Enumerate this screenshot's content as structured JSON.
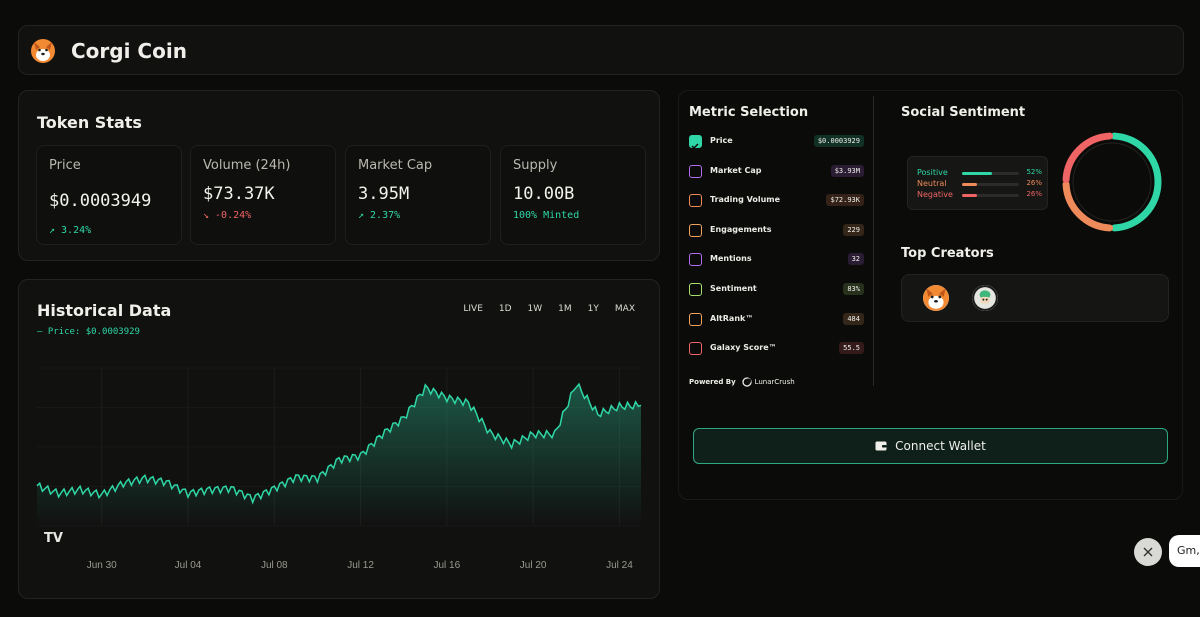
{
  "header": {
    "title": "Corgi Coin",
    "logo_icon": "corgi-icon"
  },
  "token_stats": {
    "title": "Token Stats",
    "cards": [
      {
        "label": "Price",
        "value": "$0.0003949",
        "change": "↗ 3.24%",
        "direction": "up"
      },
      {
        "label": "Volume (24h)",
        "value": "$73.37K",
        "change": "↘ -0.24%",
        "direction": "down"
      },
      {
        "label": "Market Cap",
        "value": "3.95M",
        "change": "↗ 2.37%",
        "direction": "up"
      },
      {
        "label": "Supply",
        "value": "10.00B",
        "change": "100% Minted",
        "direction": "up"
      }
    ]
  },
  "historical": {
    "title": "Historical Data",
    "legend": "— Price: $0.0003929",
    "ranges": [
      "LIVE",
      "1D",
      "1W",
      "1M",
      "1Y",
      "MAX"
    ],
    "logo": "TV"
  },
  "chart_data": {
    "type": "area",
    "title": "Historical Data",
    "series": [
      {
        "name": "Price",
        "x": [
          "Jun 27",
          "Jun 28",
          "Jun 29",
          "Jun 30",
          "Jul 01",
          "Jul 02",
          "Jul 03",
          "Jul 04",
          "Jul 05",
          "Jul 06",
          "Jul 07",
          "Jul 08",
          "Jul 09",
          "Jul 10",
          "Jul 11",
          "Jul 12",
          "Jul 13",
          "Jul 14",
          "Jul 15",
          "Jul 16",
          "Jul 17",
          "Jul 18",
          "Jul 19",
          "Jul 20",
          "Jul 21",
          "Jul 22",
          "Jul 23",
          "Jul 24",
          "Jul 25"
        ],
        "values": [
          0.000312,
          0.000306,
          0.000309,
          0.000305,
          0.000314,
          0.000318,
          0.000315,
          0.000306,
          0.000309,
          0.00031,
          0.000302,
          0.00031,
          0.000319,
          0.000318,
          0.000333,
          0.000336,
          0.000353,
          0.000366,
          0.00039,
          0.000382,
          0.000378,
          0.000354,
          0.000345,
          0.000353,
          0.000353,
          0.000393,
          0.000369,
          0.000375,
          0.000376
        ]
      }
    ],
    "xticks": [
      "Jun 30",
      "Jul 04",
      "Jul 08",
      "Jul 12",
      "Jul 16",
      "Jul 20",
      "Jul 24"
    ],
    "ylim": [
      0.00028,
      0.00042
    ],
    "grid": true,
    "line_color": "#2fd7a6"
  },
  "metrics": {
    "title": "Metric Selection",
    "items": [
      {
        "label": "Price",
        "badge": "$0.0003929",
        "color": "#2fd7a6",
        "checked": true
      },
      {
        "label": "Market Cap",
        "badge": "$3.93M",
        "color": "#b26cf0",
        "checked": false
      },
      {
        "label": "Trading Volume",
        "badge": "$72.93K",
        "color": "#ef8a5a",
        "checked": false
      },
      {
        "label": "Engagements",
        "badge": "229",
        "color": "#f0a35a",
        "checked": false
      },
      {
        "label": "Mentions",
        "badge": "32",
        "color": "#b26cf0",
        "checked": false
      },
      {
        "label": "Sentiment",
        "badge": "83%",
        "color": "#a5e06b",
        "checked": false
      },
      {
        "label": "AltRank™",
        "badge": "484",
        "color": "#f0a35a",
        "checked": false
      },
      {
        "label": "Galaxy Score™",
        "badge": "55.5",
        "color": "#ef6464",
        "checked": false
      }
    ],
    "powered_by": "Powered By",
    "powered_brand": "LunarCrush"
  },
  "social": {
    "title": "Social Sentiment",
    "rows": [
      {
        "label": "Positive",
        "pct": "52%",
        "value": 52,
        "color": "#2fd7a6"
      },
      {
        "label": "Neutral",
        "pct": "26%",
        "value": 26,
        "color": "#ef8a5a"
      },
      {
        "label": "Negative",
        "pct": "26%",
        "value": 26,
        "color": "#ef6464"
      }
    ]
  },
  "creators": {
    "title": "Top Creators"
  },
  "wallet": {
    "connect_label": "Connect Wallet"
  },
  "chat": {
    "preview": "Gm, l"
  }
}
